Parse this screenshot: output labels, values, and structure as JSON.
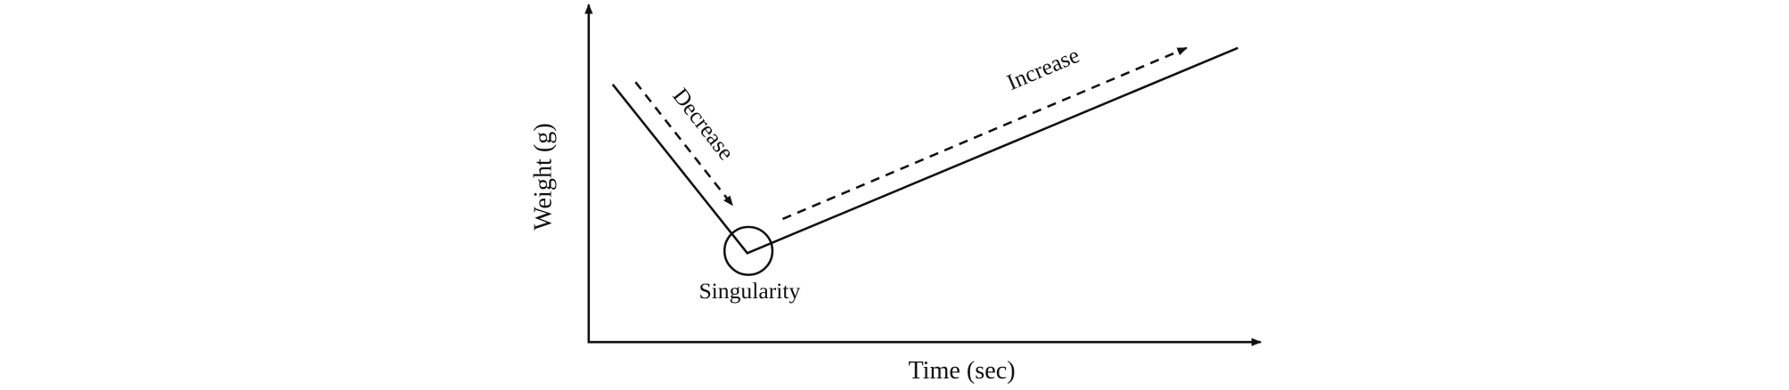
{
  "axes": {
    "y_label": "Weight (g)",
    "x_label": "Time (sec)"
  },
  "annotations": {
    "decrease": "Decrease",
    "increase": "Increase",
    "singularity": "Singularity"
  }
}
